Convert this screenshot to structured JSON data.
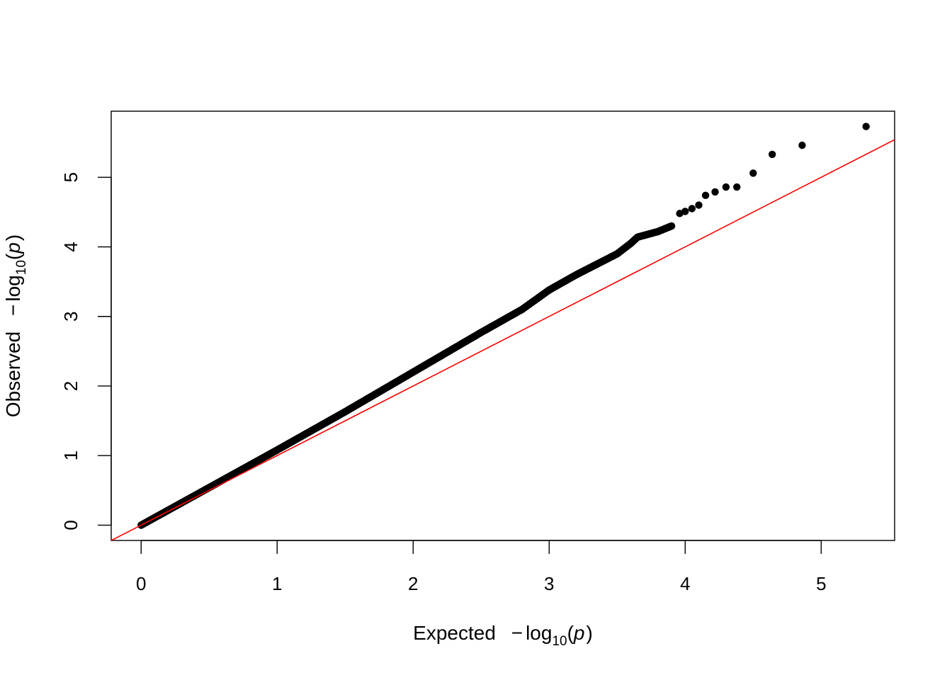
{
  "chart_data": {
    "type": "scatter",
    "title": "",
    "xlabel_parts": {
      "prefix": "Expected",
      "minus": "−",
      "log": "log",
      "sub": "10",
      "open": "(",
      "var": "p",
      "close": ")"
    },
    "ylabel_parts": {
      "prefix": "Observed",
      "minus": "−",
      "log": "log",
      "sub": "10",
      "open": "(",
      "var": "p",
      "close": ")"
    },
    "xlim": [
      -0.22,
      5.54
    ],
    "ylim": [
      -0.22,
      5.95
    ],
    "xticks": [
      0,
      1,
      2,
      3,
      4,
      5
    ],
    "xtick_labels": [
      "0",
      "1",
      "2",
      "3",
      "4",
      "5"
    ],
    "yticks": [
      0,
      1,
      2,
      3,
      4,
      5
    ],
    "ytick_labels": [
      "0",
      "1",
      "2",
      "3",
      "4",
      "5"
    ],
    "grid": false,
    "legend": "none",
    "reference_line": {
      "slope": 1,
      "intercept": 0,
      "color": "#ff0000"
    },
    "point_color": "#000000",
    "continuous_segment": {
      "description": "dense run of points",
      "x": [
        0.0,
        0.5,
        1.0,
        1.5,
        2.0,
        2.5,
        2.8,
        3.0,
        3.2,
        3.5,
        3.6,
        3.65,
        3.8,
        3.9
      ],
      "y": [
        0.0,
        0.54,
        1.08,
        1.63,
        2.2,
        2.77,
        3.1,
        3.38,
        3.6,
        3.9,
        4.05,
        4.14,
        4.22,
        4.3
      ]
    },
    "isolated_points": {
      "x": [
        3.96,
        4.0,
        4.05,
        4.1,
        4.15,
        4.22,
        4.3,
        4.38,
        4.5,
        4.64,
        4.86,
        5.33
      ],
      "y": [
        4.48,
        4.51,
        4.55,
        4.6,
        4.74,
        4.79,
        4.86,
        4.86,
        5.06,
        5.33,
        5.46,
        5.73
      ]
    }
  }
}
